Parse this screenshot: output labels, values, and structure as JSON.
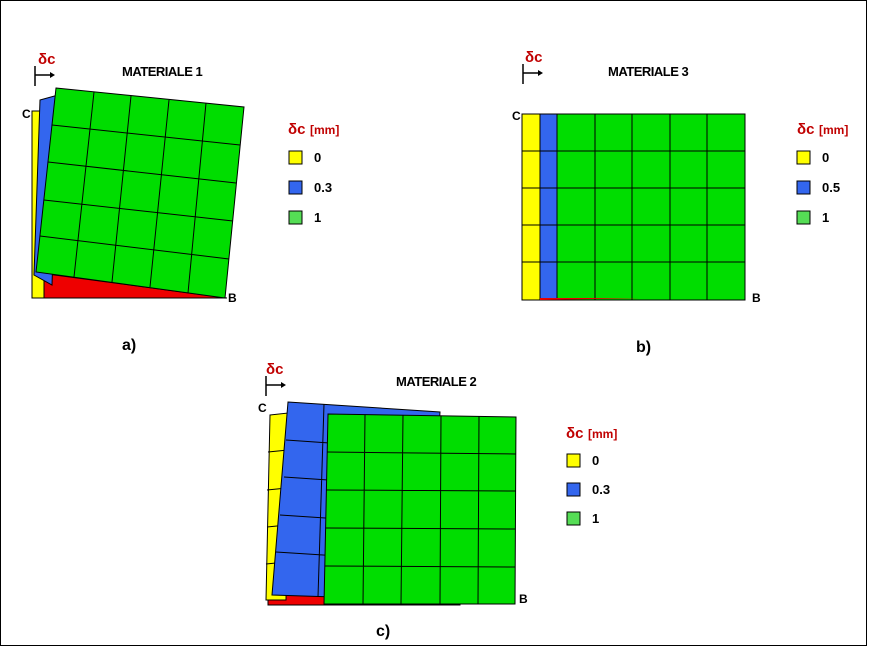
{
  "colors": {
    "layer_0": "#ffff00",
    "layer_mid": "#3366ee",
    "layer_1": "#00dd00",
    "base": "#ee0000",
    "symbol": "#c00000"
  },
  "symbol": "δc",
  "panels": [
    {
      "id": "a",
      "title": "MATERIALE 1",
      "caption": "a)",
      "corner_c": "C",
      "corner_b": "B",
      "legend": {
        "title": "δc",
        "unit": "[mm]",
        "items": [
          "0",
          "0.3",
          "1"
        ]
      }
    },
    {
      "id": "b",
      "title": "MATERIALE 3",
      "caption": "b)",
      "corner_c": "C",
      "corner_b": "B",
      "legend": {
        "title": "δc",
        "unit": "[mm]",
        "items": [
          "0",
          "0.5",
          "1"
        ]
      }
    },
    {
      "id": "c",
      "title": "MATERIALE 2",
      "caption": "c)",
      "corner_c": "C",
      "corner_b": "B",
      "legend": {
        "title": "δc",
        "unit": "[mm]",
        "items": [
          "0",
          "0.3",
          "1"
        ]
      }
    }
  ]
}
